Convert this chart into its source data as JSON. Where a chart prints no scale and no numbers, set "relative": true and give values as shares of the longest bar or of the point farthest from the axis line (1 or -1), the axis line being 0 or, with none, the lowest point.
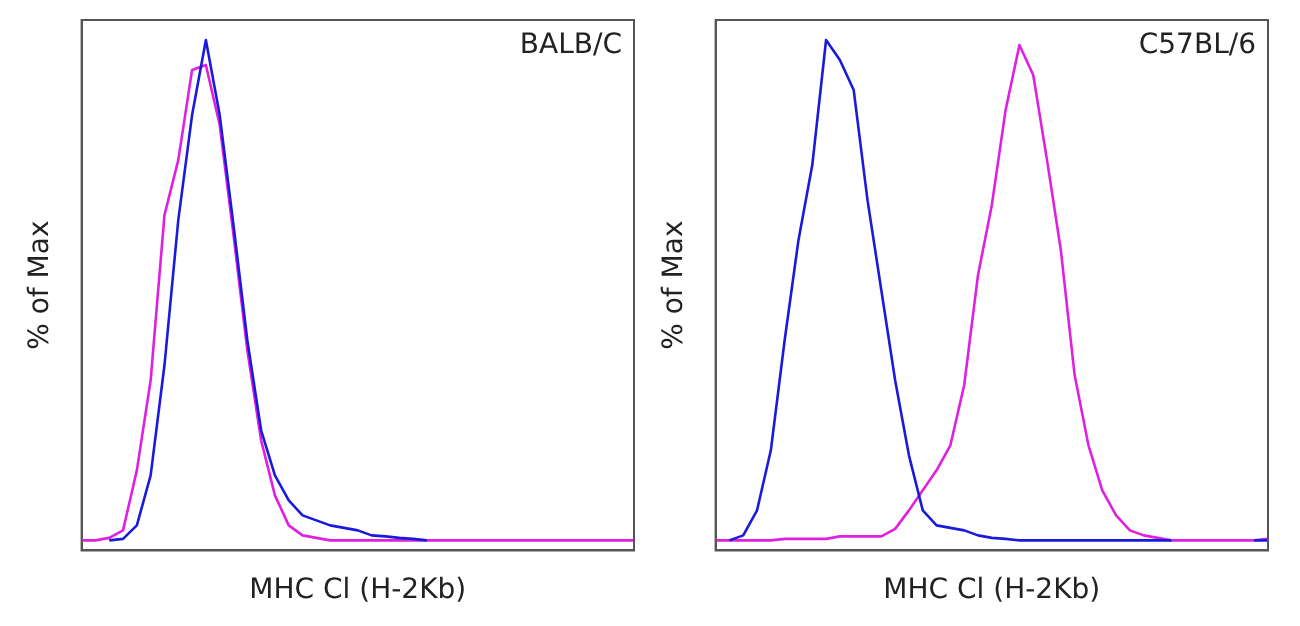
{
  "chart_data": [
    {
      "type": "line",
      "relative": true,
      "xlabel": "MHC Cl (H-2Kb)",
      "ylabel": "% of Max",
      "annotations": [
        "BALB/C"
      ],
      "tick_labels": false,
      "grid": false,
      "legend": false,
      "marker": "none",
      "categories": [
        null,
        null,
        null,
        null,
        null,
        null,
        null,
        null,
        null,
        null,
        null,
        null,
        null,
        null,
        null,
        null,
        null,
        null,
        null,
        null,
        null,
        null,
        null,
        null,
        null,
        null,
        null,
        null,
        null,
        null,
        null,
        null,
        null,
        null,
        null,
        null,
        null,
        null,
        null,
        null,
        null
      ],
      "series": [
        {
          "color": "#1a1adc",
          "values": [
            null,
            null,
            0,
            0.003,
            0.03,
            0.13,
            0.35,
            0.64,
            0.85,
            1,
            0.85,
            0.63,
            0.4,
            0.22,
            0.13,
            0.08,
            0.05,
            0.04,
            0.03,
            0.025,
            0.02,
            0.01,
            0.008,
            0.005,
            0.003,
            0,
            null,
            null,
            null,
            null,
            null,
            null,
            null,
            null,
            null,
            null,
            null,
            null,
            null,
            null,
            null
          ]
        },
        {
          "color": "#e020e0",
          "values": [
            0,
            0,
            0.005,
            0.02,
            0.14,
            0.32,
            0.65,
            0.76,
            0.94,
            0.95,
            0.83,
            0.61,
            0.38,
            0.2,
            0.09,
            0.03,
            0.01,
            0.005,
            0,
            0,
            0,
            0,
            0,
            0,
            0,
            0,
            0,
            0,
            0,
            0,
            0,
            0,
            0,
            0,
            0,
            0,
            0,
            0,
            0,
            0,
            0
          ]
        }
      ]
    },
    {
      "type": "line",
      "relative": true,
      "xlabel": "MHC Cl (H-2Kb)",
      "ylabel": "% of Max",
      "annotations": [
        "C57BL/6"
      ],
      "tick_labels": false,
      "grid": false,
      "legend": false,
      "marker": "none",
      "categories": [
        null,
        null,
        null,
        null,
        null,
        null,
        null,
        null,
        null,
        null,
        null,
        null,
        null,
        null,
        null,
        null,
        null,
        null,
        null,
        null,
        null,
        null,
        null,
        null,
        null,
        null,
        null,
        null,
        null,
        null,
        null,
        null,
        null,
        null,
        null,
        null,
        null,
        null,
        null,
        null,
        null
      ],
      "series": [
        {
          "color": "#1a1adc",
          "values": [
            null,
            0,
            0.01,
            0.06,
            0.18,
            0.4,
            0.6,
            0.75,
            1,
            0.96,
            0.9,
            0.68,
            0.5,
            0.32,
            0.17,
            0.06,
            0.03,
            0.025,
            0.02,
            0.01,
            0.005,
            0.003,
            0,
            0,
            0,
            0,
            0,
            0,
            0,
            0,
            0,
            0,
            0,
            0,
            null,
            null,
            null,
            null,
            null,
            0,
            0
          ]
        },
        {
          "color": "#e020e0",
          "values": [
            0,
            0,
            0,
            0,
            0,
            0.003,
            0.003,
            0.003,
            0.003,
            0.008,
            0.008,
            0.008,
            0.008,
            0.023,
            0.06,
            0.1,
            0.14,
            0.19,
            0.31,
            0.53,
            0.67,
            0.86,
            0.99,
            0.93,
            0.76,
            0.58,
            0.33,
            0.19,
            0.1,
            0.05,
            0.02,
            0.01,
            0.005,
            0,
            0,
            0,
            0,
            0,
            0,
            0,
            0.003
          ]
        }
      ]
    }
  ]
}
